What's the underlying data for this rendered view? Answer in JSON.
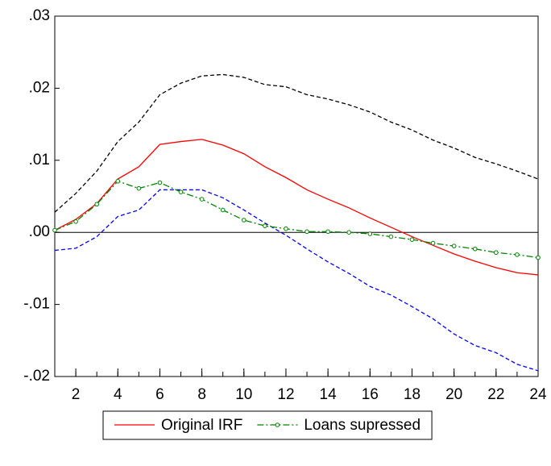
{
  "chart_data": {
    "type": "line",
    "x": [
      1,
      2,
      3,
      4,
      5,
      6,
      7,
      8,
      9,
      10,
      11,
      12,
      13,
      14,
      15,
      16,
      17,
      18,
      19,
      20,
      21,
      22,
      23,
      24
    ],
    "series": [
      {
        "color": "#000000",
        "dash": "dashed",
        "values": [
          0.0028,
          0.0054,
          0.0085,
          0.0126,
          0.0153,
          0.0191,
          0.0207,
          0.0217,
          0.0219,
          0.0215,
          0.0205,
          0.0202,
          0.0191,
          0.0185,
          0.0177,
          0.0167,
          0.0153,
          0.0142,
          0.0128,
          0.0117,
          0.0104,
          0.0095,
          0.0085,
          0.0074
        ]
      },
      {
        "color": "#0000ff",
        "dash": "dashed",
        "values": [
          -0.0025,
          -0.0022,
          -0.0006,
          0.0022,
          0.0031,
          0.0059,
          0.0059,
          0.0059,
          0.0048,
          0.0031,
          0.0013,
          -0.0004,
          -0.0023,
          -0.0041,
          -0.0057,
          -0.0075,
          -0.0087,
          -0.0103,
          -0.012,
          -0.0141,
          -0.0157,
          -0.0167,
          -0.0183,
          -0.0192
        ]
      },
      {
        "name": "Original IRF",
        "color": "#ff0000",
        "dash": "solid",
        "values": [
          0.0003,
          0.0018,
          0.004,
          0.0074,
          0.0091,
          0.0122,
          0.0126,
          0.0129,
          0.0121,
          0.0109,
          0.0091,
          0.0076,
          0.0059,
          0.0046,
          0.0034,
          0.002,
          0.0007,
          -0.0006,
          -0.0018,
          -0.003,
          -0.004,
          -0.0049,
          -0.0056,
          -0.0059
        ]
      },
      {
        "name": "Loans supressed",
        "color": "#008000",
        "dash": "dashdot",
        "marker": "circle",
        "values": [
          0.0003,
          0.0015,
          0.0039,
          0.0071,
          0.0061,
          0.0069,
          0.0056,
          0.0046,
          0.0031,
          0.0017,
          0.0009,
          0.0005,
          0.0001,
          0.0001,
          0.0,
          -0.0002,
          -0.0006,
          -0.001,
          -0.0015,
          -0.0019,
          -0.0023,
          -0.0028,
          -0.0031,
          -0.0035
        ]
      }
    ],
    "xlim": [
      1,
      24
    ],
    "xticks": [
      2,
      4,
      6,
      8,
      10,
      12,
      14,
      16,
      18,
      20,
      22,
      24
    ],
    "ylim": [
      -0.02,
      0.03
    ],
    "yticks": [
      {
        "value": 0.03,
        "label": ".03"
      },
      {
        "value": 0.02,
        "label": ".02"
      },
      {
        "value": 0.01,
        "label": ".01"
      },
      {
        "value": 0,
        "label": ".00"
      },
      {
        "value": -0.01,
        "label": "-.01"
      },
      {
        "value": -0.02,
        "label": "-.02"
      }
    ],
    "zero_line": true,
    "legend": "bottom"
  }
}
